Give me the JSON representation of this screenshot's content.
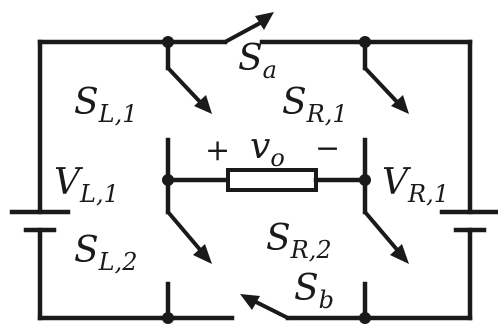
{
  "labels": {
    "s_a": {
      "main": "S",
      "sub": "a"
    },
    "s_b": {
      "main": "S",
      "sub": "b"
    },
    "s_l1": {
      "main": "S",
      "sub": "L,1"
    },
    "s_l2": {
      "main": "S",
      "sub": "L,2"
    },
    "s_r1": {
      "main": "S",
      "sub": "R,1"
    },
    "s_r2": {
      "main": "S",
      "sub": "R,2"
    },
    "v_l1": {
      "main": "V",
      "sub": "L,1"
    },
    "v_r1": {
      "main": "V",
      "sub": "R,1"
    },
    "vo_plus": "+",
    "vo": {
      "main": "v",
      "sub": "o"
    },
    "vo_minus": "−"
  }
}
